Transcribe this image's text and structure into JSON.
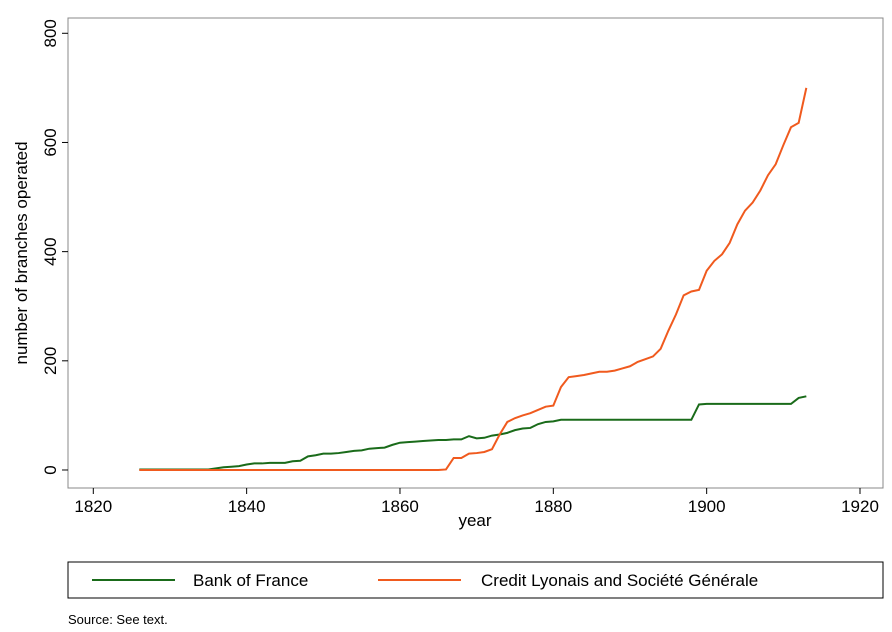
{
  "chart_data": {
    "type": "line",
    "x_label": "year",
    "y_label": "number of branches operated",
    "source": "Source: See text.",
    "x": [
      1826,
      1827,
      1828,
      1829,
      1830,
      1831,
      1832,
      1833,
      1834,
      1835,
      1836,
      1837,
      1838,
      1839,
      1840,
      1841,
      1842,
      1843,
      1844,
      1845,
      1846,
      1847,
      1848,
      1849,
      1850,
      1851,
      1852,
      1853,
      1854,
      1855,
      1856,
      1857,
      1858,
      1859,
      1860,
      1861,
      1862,
      1863,
      1864,
      1865,
      1866,
      1867,
      1868,
      1869,
      1870,
      1871,
      1872,
      1873,
      1874,
      1875,
      1876,
      1877,
      1878,
      1879,
      1880,
      1881,
      1882,
      1883,
      1884,
      1885,
      1886,
      1887,
      1888,
      1889,
      1890,
      1891,
      1892,
      1893,
      1894,
      1895,
      1896,
      1897,
      1898,
      1899,
      1900,
      1901,
      1902,
      1903,
      1904,
      1905,
      1906,
      1907,
      1908,
      1909,
      1910,
      1911,
      1912,
      1913
    ],
    "series": [
      {
        "name": "Bank of France",
        "color": "#1a6b1a",
        "values": [
          1,
          1,
          1,
          1,
          1,
          1,
          1,
          1,
          1,
          1,
          3,
          5,
          6,
          7,
          10,
          12,
          12,
          13,
          13,
          13,
          16,
          17,
          25,
          27,
          30,
          30,
          31,
          33,
          35,
          36,
          39,
          40,
          41,
          46,
          50,
          51,
          52,
          53,
          54,
          55,
          55,
          56,
          56,
          62,
          58,
          59,
          63,
          65,
          68,
          73,
          76,
          77,
          84,
          88,
          89,
          92,
          92,
          92,
          92,
          92,
          92,
          92,
          92,
          92,
          92,
          92,
          92,
          92,
          92,
          92,
          92,
          92,
          92,
          120,
          121,
          121,
          121,
          121,
          121,
          121,
          121,
          121,
          121,
          121,
          121,
          121,
          132,
          135
        ]
      },
      {
        "name": "Credit Lyonais and Société Générale",
        "color": "#f05a1e",
        "values": [
          0,
          0,
          0,
          0,
          0,
          0,
          0,
          0,
          0,
          0,
          0,
          0,
          0,
          0,
          0,
          0,
          0,
          0,
          0,
          0,
          0,
          0,
          0,
          0,
          0,
          0,
          0,
          0,
          0,
          0,
          0,
          0,
          0,
          0,
          0,
          0,
          0,
          0,
          0,
          0,
          1,
          22,
          22,
          30,
          31,
          33,
          38,
          65,
          88,
          95,
          100,
          104,
          110,
          116,
          118,
          152,
          170,
          172,
          174,
          177,
          180,
          180,
          182,
          186,
          190,
          198,
          203,
          208,
          222,
          255,
          285,
          320,
          327,
          330,
          365,
          383,
          395,
          416,
          450,
          475,
          490,
          512,
          540,
          560,
          595,
          628,
          636,
          700
        ]
      }
    ],
    "xlim": [
      1816.7,
      1923
    ],
    "xticks": [
      1820,
      1840,
      1860,
      1880,
      1900,
      1920
    ],
    "ylim": [
      -33,
      828
    ],
    "yticks": [
      0,
      200,
      400,
      600,
      800
    ]
  }
}
